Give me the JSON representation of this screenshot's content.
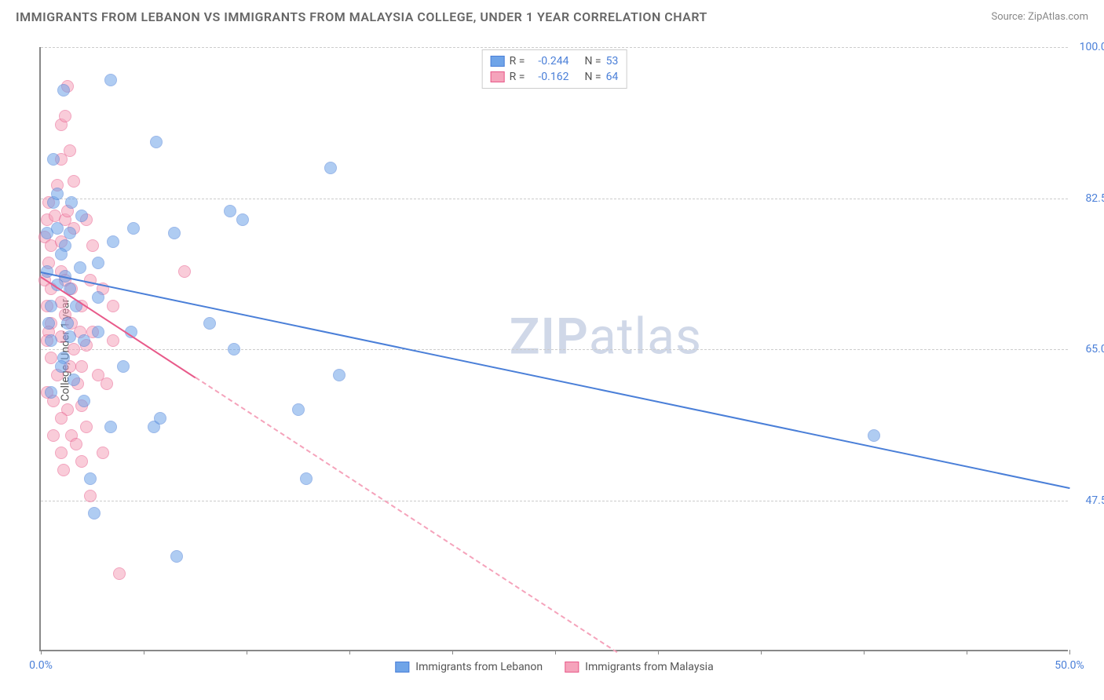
{
  "header": {
    "title": "IMMIGRANTS FROM LEBANON VS IMMIGRANTS FROM MALAYSIA COLLEGE, UNDER 1 YEAR CORRELATION CHART",
    "source": "Source: ZipAtlas.com"
  },
  "chart": {
    "type": "scatter",
    "y_label": "College, Under 1 year",
    "watermark_a": "ZIP",
    "watermark_b": "atlas",
    "background_color": "#ffffff",
    "grid_color": "#cccccc",
    "axis_color": "#888888",
    "tick_color": "#4a7fd8",
    "xlim": [
      0,
      50
    ],
    "ylim": [
      30,
      100
    ],
    "x_ticks": [
      0,
      5,
      10,
      15,
      20,
      25,
      30,
      35,
      40,
      45,
      50
    ],
    "x_tick_labels": {
      "0": "0.0%",
      "50": "50.0%"
    },
    "y_ticks": [
      47.5,
      65.0,
      82.5,
      100.0
    ],
    "y_tick_labels": [
      "47.5%",
      "65.0%",
      "82.5%",
      "100.0%"
    ],
    "marker_radius": 8,
    "marker_opacity": 0.55,
    "series": [
      {
        "name": "Immigrants from Lebanon",
        "color": "#6fa4e8",
        "stroke": "#4a7fd8",
        "R": "-0.244",
        "N": "53",
        "regression": {
          "x1": 0,
          "y1": 74,
          "x2": 50,
          "y2": 49,
          "solid_to_x": 50,
          "style": "solid"
        },
        "points": [
          [
            3.4,
            96.2
          ],
          [
            1.1,
            95.0
          ],
          [
            0.6,
            82.0
          ],
          [
            1.2,
            73.5
          ],
          [
            0.3,
            74.0
          ],
          [
            5.6,
            89.0
          ],
          [
            0.5,
            70.0
          ],
          [
            2.1,
            66.0
          ],
          [
            1.4,
            72.0
          ],
          [
            1.2,
            77.0
          ],
          [
            0.3,
            78.5
          ],
          [
            2.8,
            67.0
          ],
          [
            0.8,
            79.0
          ],
          [
            1.3,
            68.0
          ],
          [
            9.2,
            81.0
          ],
          [
            9.8,
            80.0
          ],
          [
            4.5,
            79.0
          ],
          [
            14.1,
            86.0
          ],
          [
            4.0,
            63.0
          ],
          [
            3.4,
            56.0
          ],
          [
            5.5,
            56.0
          ],
          [
            5.8,
            57.0
          ],
          [
            2.6,
            46.0
          ],
          [
            6.6,
            41.0
          ],
          [
            1.6,
            61.5
          ],
          [
            2.8,
            71.0
          ],
          [
            4.4,
            67.0
          ],
          [
            8.2,
            68.0
          ],
          [
            1.0,
            76.0
          ],
          [
            0.5,
            66.0
          ],
          [
            1.4,
            78.5
          ],
          [
            0.8,
            83.0
          ],
          [
            2.4,
            50.0
          ],
          [
            12.5,
            58.0
          ],
          [
            14.5,
            62.0
          ],
          [
            9.4,
            65.0
          ],
          [
            40.5,
            55.0
          ],
          [
            12.9,
            50.0
          ],
          [
            3.5,
            77.5
          ],
          [
            0.6,
            87.0
          ],
          [
            1.9,
            74.5
          ],
          [
            0.4,
            68.0
          ],
          [
            1.1,
            64.0
          ],
          [
            2.0,
            80.5
          ],
          [
            1.0,
            63.0
          ],
          [
            6.5,
            78.5
          ],
          [
            0.8,
            72.5
          ],
          [
            1.5,
            82.0
          ],
          [
            1.4,
            66.5
          ],
          [
            2.8,
            75.0
          ],
          [
            2.1,
            59.0
          ],
          [
            1.7,
            70.0
          ],
          [
            0.5,
            60.0
          ]
        ]
      },
      {
        "name": "Immigrants from Malaysia",
        "color": "#f5a3bb",
        "stroke": "#e85a8a",
        "R": "-0.162",
        "N": "64",
        "regression": {
          "x1": 0,
          "y1": 73.5,
          "x2": 28,
          "y2": 30,
          "solid_to_x": 7.5,
          "style": "dashed"
        },
        "points": [
          [
            1.3,
            95.5
          ],
          [
            1.0,
            91.0
          ],
          [
            1.2,
            92.0
          ],
          [
            1.0,
            87.0
          ],
          [
            1.4,
            88.0
          ],
          [
            0.3,
            80.0
          ],
          [
            0.7,
            80.5
          ],
          [
            1.2,
            80.0
          ],
          [
            1.3,
            81.0
          ],
          [
            1.6,
            79.0
          ],
          [
            2.2,
            80.0
          ],
          [
            0.2,
            78.0
          ],
          [
            0.5,
            77.0
          ],
          [
            1.0,
            77.5
          ],
          [
            0.4,
            75.0
          ],
          [
            1.0,
            74.0
          ],
          [
            1.2,
            73.0
          ],
          [
            0.2,
            73.0
          ],
          [
            0.5,
            72.0
          ],
          [
            1.5,
            72.0
          ],
          [
            2.4,
            73.0
          ],
          [
            0.3,
            70.0
          ],
          [
            1.0,
            70.5
          ],
          [
            1.2,
            69.0
          ],
          [
            2.0,
            70.0
          ],
          [
            0.5,
            68.0
          ],
          [
            1.5,
            68.0
          ],
          [
            0.4,
            67.0
          ],
          [
            1.9,
            67.0
          ],
          [
            2.5,
            67.0
          ],
          [
            0.3,
            66.0
          ],
          [
            1.0,
            66.5
          ],
          [
            1.6,
            65.0
          ],
          [
            2.2,
            65.5
          ],
          [
            3.5,
            66.0
          ],
          [
            0.5,
            64.0
          ],
          [
            1.4,
            63.0
          ],
          [
            2.0,
            63.0
          ],
          [
            0.8,
            62.0
          ],
          [
            1.8,
            61.0
          ],
          [
            0.3,
            60.0
          ],
          [
            3.2,
            61.0
          ],
          [
            0.6,
            59.0
          ],
          [
            1.3,
            58.0
          ],
          [
            2.0,
            58.5
          ],
          [
            1.0,
            57.0
          ],
          [
            1.5,
            55.0
          ],
          [
            0.6,
            55.0
          ],
          [
            1.7,
            54.0
          ],
          [
            2.0,
            52.0
          ],
          [
            1.0,
            53.0
          ],
          [
            2.4,
            48.0
          ],
          [
            3.0,
            53.0
          ],
          [
            3.8,
            39.0
          ],
          [
            7.0,
            74.0
          ],
          [
            3.5,
            70.0
          ],
          [
            2.8,
            62.0
          ],
          [
            0.8,
            84.0
          ],
          [
            1.6,
            84.5
          ],
          [
            0.4,
            82.0
          ],
          [
            2.5,
            77.0
          ],
          [
            3.0,
            72.0
          ],
          [
            2.2,
            56.0
          ],
          [
            1.1,
            51.0
          ]
        ]
      }
    ],
    "legend_top": {
      "R_label": "R =",
      "N_label": "N ="
    },
    "legend_bottom_labels": [
      "Immigrants from Lebanon",
      "Immigrants from Malaysia"
    ]
  }
}
